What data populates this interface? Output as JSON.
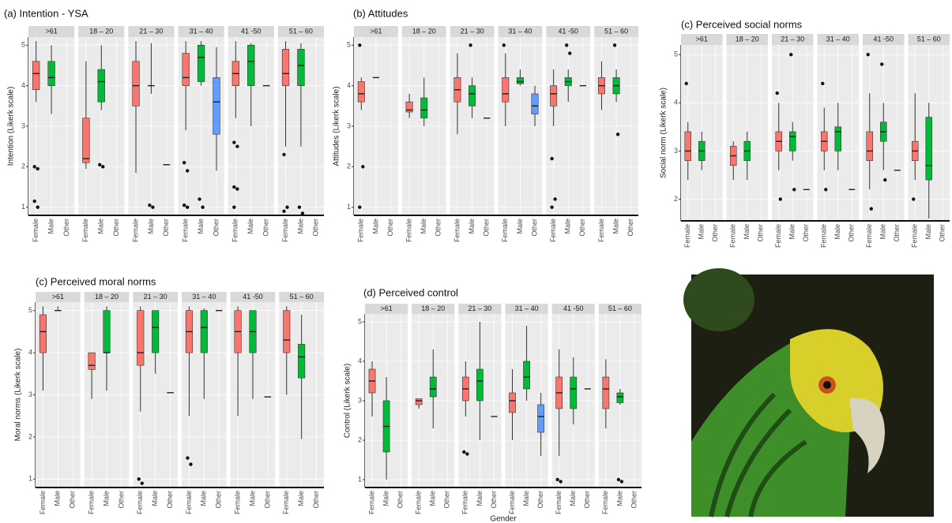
{
  "chart_data": [
    {
      "type": "boxplot",
      "title": "(a) Intention - YSA",
      "y_label": "Intention (Likerk scale)",
      "categories": [
        "Female",
        "Male",
        "Other"
      ],
      "colors": [
        "#f8766d",
        "#00ba38",
        "#619cff"
      ],
      "ylim": [
        0.8,
        5.2
      ],
      "yticks": [
        1,
        2,
        3,
        4,
        5
      ],
      "grid": true,
      "facets": [
        {
          "name": ">61",
          "boxes": [
            {
              "min": 3.6,
              "q1": 3.9,
              "median": 4.3,
              "q3": 4.6,
              "max": 5.1,
              "outliers": [
                2,
                1.95,
                1.15,
                1
              ]
            },
            {
              "min": 3.3,
              "q1": 4.0,
              "median": 4.2,
              "q3": 4.6,
              "max": 5.0
            },
            null
          ]
        },
        {
          "name": "18 – 20",
          "boxes": [
            {
              "min": 1.95,
              "q1": 2.1,
              "median": 2.2,
              "q3": 3.2,
              "max": 4.6
            },
            {
              "min": 3.4,
              "q1": 3.6,
              "median": 4.1,
              "q3": 4.4,
              "max": 5.0,
              "outliers": [
                2.05,
                2
              ]
            },
            null
          ]
        },
        {
          "name": "21 – 30",
          "boxes": [
            {
              "min": 1.85,
              "q1": 3.5,
              "median": 4.0,
              "q3": 4.6,
              "max": 5.1
            },
            {
              "min": 3.8,
              "q1": 4.0,
              "median": 4.0,
              "q3": 4.0,
              "max": 5.05,
              "outliers": [
                1.05,
                1
              ]
            },
            {
              "min": 2.05,
              "q1": 2.05,
              "median": 2.05,
              "q3": 2.05,
              "max": 2.05
            }
          ]
        },
        {
          "name": "31 – 40",
          "boxes": [
            {
              "min": 2.9,
              "q1": 4.0,
              "median": 4.2,
              "q3": 4.8,
              "max": 5.1,
              "outliers": [
                2.1,
                1.9,
                1.05,
                1
              ]
            },
            {
              "min": 4.0,
              "q1": 4.1,
              "median": 4.7,
              "q3": 5.0,
              "max": 5.1,
              "outliers": [
                1.2,
                1
              ]
            },
            {
              "min": 1.9,
              "q1": 2.8,
              "median": 3.6,
              "q3": 4.2,
              "max": 4.95
            }
          ]
        },
        {
          "name": "41 -50",
          "boxes": [
            {
              "min": 3.2,
              "q1": 4.0,
              "median": 4.3,
              "q3": 4.6,
              "max": 5.1,
              "outliers": [
                2.6,
                2.5,
                1.5,
                1.45,
                1
              ]
            },
            {
              "min": 3.0,
              "q1": 4.0,
              "median": 4.6,
              "q3": 5.0,
              "max": 5.05
            },
            {
              "min": 4.0,
              "q1": 4.0,
              "median": 4.0,
              "q3": 4.0,
              "max": 4.0
            }
          ]
        },
        {
          "name": "51 – 60",
          "boxes": [
            {
              "min": 2.5,
              "q1": 4.0,
              "median": 4.3,
              "q3": 4.9,
              "max": 5.1,
              "outliers": [
                2.3,
                1,
                0.9
              ]
            },
            {
              "min": 2.5,
              "q1": 4.0,
              "median": 4.5,
              "q3": 4.9,
              "max": 5.05,
              "outliers": [
                1,
                0.85
              ]
            },
            null
          ]
        }
      ]
    },
    {
      "type": "boxplot",
      "title": "(b) Attitudes",
      "y_label": "Attitudes (Likerk scale)",
      "categories": [
        "Female",
        "Male",
        "Other"
      ],
      "colors": [
        "#f8766d",
        "#00ba38",
        "#619cff"
      ],
      "ylim": [
        0.8,
        5.2
      ],
      "yticks": [
        1,
        2,
        3,
        4,
        5
      ],
      "grid": true,
      "facets": [
        {
          "name": ">61",
          "boxes": [
            {
              "min": 3.4,
              "q1": 3.6,
              "median": 3.8,
              "q3": 4.1,
              "max": 4.2,
              "outliers": [
                5,
                2,
                1
              ]
            },
            {
              "min": 4.2,
              "q1": 4.2,
              "median": 4.2,
              "q3": 4.2,
              "max": 4.2
            },
            null
          ]
        },
        {
          "name": "18 – 20",
          "boxes": [
            {
              "min": 3.2,
              "q1": 3.35,
              "median": 3.4,
              "q3": 3.6,
              "max": 3.8
            },
            {
              "min": 3.0,
              "q1": 3.2,
              "median": 3.4,
              "q3": 3.7,
              "max": 4.2
            },
            null
          ]
        },
        {
          "name": "21 – 30",
          "boxes": [
            {
              "min": 2.8,
              "q1": 3.6,
              "median": 3.9,
              "q3": 4.2,
              "max": 4.8
            },
            {
              "min": 3.2,
              "q1": 3.5,
              "median": 3.8,
              "q3": 4.0,
              "max": 4.2,
              "outliers": [
                5
              ]
            },
            {
              "min": 3.2,
              "q1": 3.2,
              "median": 3.2,
              "q3": 3.2,
              "max": 3.2
            }
          ]
        },
        {
          "name": "31 – 40",
          "boxes": [
            {
              "min": 3.0,
              "q1": 3.6,
              "median": 3.8,
              "q3": 4.2,
              "max": 4.8,
              "outliers": [
                5
              ]
            },
            {
              "min": 4.0,
              "q1": 4.05,
              "median": 4.1,
              "q3": 4.2,
              "max": 4.4
            },
            {
              "min": 3.0,
              "q1": 3.3,
              "median": 3.5,
              "q3": 3.8,
              "max": 4.0
            }
          ]
        },
        {
          "name": "41 -50",
          "boxes": [
            {
              "min": 3.0,
              "q1": 3.5,
              "median": 3.8,
              "q3": 4.0,
              "max": 4.4,
              "outliers": [
                2.2,
                1.2,
                1
              ]
            },
            {
              "min": 3.6,
              "q1": 4.0,
              "median": 4.1,
              "q3": 4.2,
              "max": 4.4,
              "outliers": [
                5,
                4.8
              ]
            },
            {
              "min": 4.0,
              "q1": 4.0,
              "median": 4.0,
              "q3": 4.0,
              "max": 4.0
            }
          ]
        },
        {
          "name": "51 – 60",
          "boxes": [
            {
              "min": 3.4,
              "q1": 3.8,
              "median": 4.0,
              "q3": 4.2,
              "max": 4.6
            },
            {
              "min": 3.6,
              "q1": 3.8,
              "median": 4.0,
              "q3": 4.2,
              "max": 4.4,
              "outliers": [
                5,
                2.8
              ]
            },
            null
          ]
        }
      ]
    },
    {
      "type": "boxplot",
      "title": "(c) Perceived social norms",
      "y_label": "Social norm (Likerk scale)",
      "categories": [
        "Female",
        "Male",
        "Other"
      ],
      "colors": [
        "#f8766d",
        "#00ba38",
        "#619cff"
      ],
      "ylim": [
        1.55,
        5.2
      ],
      "yticks": [
        2,
        3,
        4,
        5
      ],
      "grid": true,
      "facets": [
        {
          "name": ">61",
          "boxes": [
            {
              "min": 2.4,
              "q1": 2.8,
              "median": 3.0,
              "q3": 3.4,
              "max": 3.6,
              "outliers": [
                4.4
              ]
            },
            {
              "min": 2.6,
              "q1": 2.8,
              "median": 3.0,
              "q3": 3.2,
              "max": 3.4
            },
            null
          ]
        },
        {
          "name": "18 – 20",
          "boxes": [
            {
              "min": 2.4,
              "q1": 2.7,
              "median": 2.9,
              "q3": 3.1,
              "max": 3.2
            },
            {
              "min": 2.4,
              "q1": 2.8,
              "median": 3.0,
              "q3": 3.2,
              "max": 3.4
            },
            null
          ]
        },
        {
          "name": "21 – 30",
          "boxes": [
            {
              "min": 2.6,
              "q1": 3.0,
              "median": 3.2,
              "q3": 3.4,
              "max": 4.0,
              "outliers": [
                4.2,
                2
              ]
            },
            {
              "min": 2.8,
              "q1": 3.0,
              "median": 3.3,
              "q3": 3.4,
              "max": 3.6,
              "outliers": [
                5,
                2.2
              ]
            },
            {
              "min": 2.2,
              "q1": 2.2,
              "median": 2.2,
              "q3": 2.2,
              "max": 2.2
            }
          ]
        },
        {
          "name": "31 – 40",
          "boxes": [
            {
              "min": 2.6,
              "q1": 3.0,
              "median": 3.2,
              "q3": 3.4,
              "max": 3.9,
              "outliers": [
                4.4,
                2.2
              ]
            },
            {
              "min": 2.6,
              "q1": 3.0,
              "median": 3.4,
              "q3": 3.5,
              "max": 4.0
            },
            {
              "min": 2.2,
              "q1": 2.2,
              "median": 2.2,
              "q3": 2.2,
              "max": 2.2
            }
          ]
        },
        {
          "name": "41 -50",
          "boxes": [
            {
              "min": 2.2,
              "q1": 2.8,
              "median": 3.0,
              "q3": 3.4,
              "max": 4.2,
              "outliers": [
                5,
                1.8
              ]
            },
            {
              "min": 2.6,
              "q1": 3.2,
              "median": 3.4,
              "q3": 3.6,
              "max": 4.0,
              "outliers": [
                4.8,
                2.4
              ]
            },
            {
              "min": 2.6,
              "q1": 2.6,
              "median": 2.6,
              "q3": 2.6,
              "max": 2.6
            }
          ]
        },
        {
          "name": "51 – 60",
          "boxes": [
            {
              "min": 2.4,
              "q1": 2.8,
              "median": 3.0,
              "q3": 3.2,
              "max": 4.2,
              "outliers": [
                2
              ]
            },
            {
              "min": 1.6,
              "q1": 2.4,
              "median": 2.7,
              "q3": 3.7,
              "max": 4.0
            },
            null
          ]
        }
      ]
    },
    {
      "type": "boxplot",
      "title": "(c) Perceived moral norms",
      "y_label": "Moral norms (Likerk scale)",
      "categories": [
        "Female",
        "Male",
        "Other"
      ],
      "colors": [
        "#f8766d",
        "#00ba38",
        "#619cff"
      ],
      "ylim": [
        0.8,
        5.2
      ],
      "yticks": [
        1,
        2,
        3,
        4,
        5
      ],
      "grid": true,
      "facets": [
        {
          "name": ">61",
          "boxes": [
            {
              "min": 3.1,
              "q1": 4.0,
              "median": 4.5,
              "q3": 4.9,
              "max": 5.1
            },
            {
              "min": 5.0,
              "q1": 5.0,
              "median": 5.0,
              "q3": 5.0,
              "max": 5.1
            },
            null
          ]
        },
        {
          "name": "18 – 20",
          "boxes": [
            {
              "min": 2.9,
              "q1": 3.6,
              "median": 3.7,
              "q3": 4.0,
              "max": 4.0
            },
            {
              "min": 3.1,
              "q1": 4.0,
              "median": 4.0,
              "q3": 5.0,
              "max": 5.1
            },
            null
          ]
        },
        {
          "name": "21 – 30",
          "boxes": [
            {
              "min": 2.6,
              "q1": 3.7,
              "median": 4.0,
              "q3": 5.0,
              "max": 5.1,
              "outliers": [
                1,
                0.9
              ]
            },
            {
              "min": 3.5,
              "q1": 4.0,
              "median": 4.6,
              "q3": 5.0,
              "max": 5.0
            },
            {
              "min": 3.05,
              "q1": 3.05,
              "median": 3.05,
              "q3": 3.05,
              "max": 3.05
            }
          ]
        },
        {
          "name": "31 – 40",
          "boxes": [
            {
              "min": 2.5,
              "q1": 4.0,
              "median": 4.5,
              "q3": 5.0,
              "max": 5.1,
              "outliers": [
                1.5,
                1.35
              ]
            },
            {
              "min": 2.9,
              "q1": 4.0,
              "median": 4.6,
              "q3": 5.0,
              "max": 5.05
            },
            {
              "min": 5.0,
              "q1": 5.0,
              "median": 5.0,
              "q3": 5.0,
              "max": 5.0
            }
          ]
        },
        {
          "name": "41 -50",
          "boxes": [
            {
              "min": 2.5,
              "q1": 4.0,
              "median": 4.5,
              "q3": 5.0,
              "max": 5.1
            },
            {
              "min": 2.9,
              "q1": 4.0,
              "median": 4.5,
              "q3": 5.0,
              "max": 5.0
            },
            {
              "min": 2.95,
              "q1": 2.95,
              "median": 2.95,
              "q3": 2.95,
              "max": 2.95
            }
          ]
        },
        {
          "name": "51 – 60",
          "boxes": [
            {
              "min": 3.0,
              "q1": 4.0,
              "median": 4.3,
              "q3": 5.0,
              "max": 5.1
            },
            {
              "min": 1.95,
              "q1": 3.4,
              "median": 3.9,
              "q3": 4.2,
              "max": 4.9
            },
            null
          ]
        }
      ]
    },
    {
      "type": "boxplot",
      "title": "(d) Perceived control",
      "y_label": "Control (Likerk scale)",
      "x_label": "Gender",
      "categories": [
        "Female",
        "Male",
        "Other"
      ],
      "colors": [
        "#f8766d",
        "#00ba38",
        "#619cff"
      ],
      "ylim": [
        0.8,
        5.2
      ],
      "yticks": [
        1,
        2,
        3,
        4,
        5
      ],
      "grid": true,
      "facets": [
        {
          "name": ">61",
          "boxes": [
            {
              "min": 2.6,
              "q1": 3.2,
              "median": 3.5,
              "q3": 3.8,
              "max": 4.0
            },
            {
              "min": 1.0,
              "q1": 1.7,
              "median": 2.35,
              "q3": 3.0,
              "max": 3.6
            },
            null
          ]
        },
        {
          "name": "18 – 20",
          "boxes": [
            {
              "min": 2.8,
              "q1": 2.9,
              "median": 3.0,
              "q3": 3.05,
              "max": 3.05
            },
            {
              "min": 2.3,
              "q1": 3.1,
              "median": 3.3,
              "q3": 3.6,
              "max": 4.3
            },
            null
          ]
        },
        {
          "name": "21 – 30",
          "boxes": [
            {
              "min": 2.6,
              "q1": 3.0,
              "median": 3.3,
              "q3": 3.6,
              "max": 4.0,
              "outliers": [
                1.7,
                1.65
              ]
            },
            {
              "min": 2.0,
              "q1": 3.0,
              "median": 3.5,
              "q3": 3.8,
              "max": 5.0
            },
            {
              "min": 2.6,
              "q1": 2.6,
              "median": 2.6,
              "q3": 2.6,
              "max": 2.6
            }
          ]
        },
        {
          "name": "31 – 40",
          "boxes": [
            {
              "min": 2.0,
              "q1": 2.7,
              "median": 3.0,
              "q3": 3.2,
              "max": 3.8
            },
            {
              "min": 3.0,
              "q1": 3.3,
              "median": 3.6,
              "q3": 4.0,
              "max": 4.9
            },
            {
              "min": 1.6,
              "q1": 2.2,
              "median": 2.6,
              "q3": 2.9,
              "max": 3.2
            }
          ]
        },
        {
          "name": "41 -50",
          "boxes": [
            {
              "min": 1.6,
              "q1": 2.8,
              "median": 3.2,
              "q3": 3.6,
              "max": 4.3,
              "outliers": [
                1,
                0.95
              ]
            },
            {
              "min": 2.4,
              "q1": 2.8,
              "median": 3.3,
              "q3": 3.6,
              "max": 4.1
            },
            {
              "min": 3.3,
              "q1": 3.3,
              "median": 3.3,
              "q3": 3.3,
              "max": 3.3
            }
          ]
        },
        {
          "name": "51 – 60",
          "boxes": [
            {
              "min": 2.3,
              "q1": 2.8,
              "median": 3.3,
              "q3": 3.6,
              "max": 4.05
            },
            {
              "min": 2.9,
              "q1": 2.95,
              "median": 3.1,
              "q3": 3.2,
              "max": 3.3,
              "outliers": [
                1,
                0.95
              ]
            },
            null
          ]
        }
      ]
    }
  ]
}
